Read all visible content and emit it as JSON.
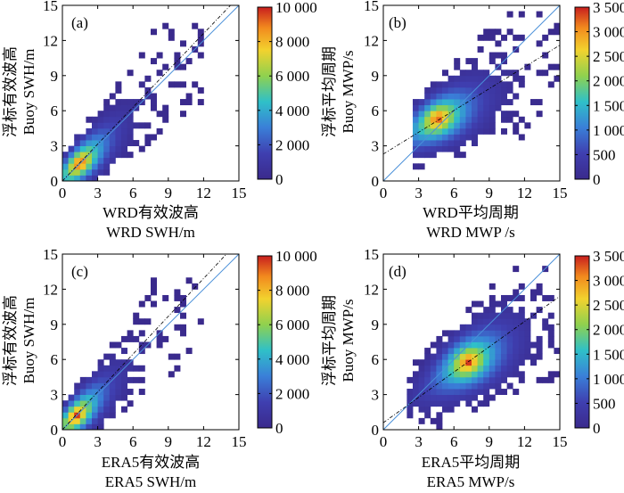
{
  "chart_data": [
    {
      "id": "a",
      "type": "heatmap",
      "panel_label": "(a)",
      "xlabel_cn": "WRD有效波高",
      "xlabel_en": "WRD SWH/m",
      "ylabel_cn": "浮标有效波高",
      "ylabel_en": "Buoy SWH/m",
      "xlim": [
        0,
        15
      ],
      "ylim": [
        0,
        15
      ],
      "xticks": [
        0,
        3,
        6,
        9,
        12,
        15
      ],
      "yticks": [
        0,
        3,
        6,
        9,
        12,
        15
      ],
      "colorbar": {
        "min": 0,
        "max": 10000,
        "ticks": [
          0,
          2000,
          4000,
          6000,
          8000,
          10000
        ],
        "tick_labels": [
          "0",
          "2 000",
          "4 000",
          "6 000",
          "8 000",
          "10 000"
        ]
      },
      "reference_line": {
        "type": "1:1",
        "color": "#4a90d9"
      },
      "fit_line": {
        "slope": 1.05,
        "intercept": 0.0,
        "style": "dash-dot",
        "color": "#000000"
      },
      "density_model": {
        "peak_x": 1.5,
        "peak_y": 1.5,
        "peak_count": 10000,
        "spread_x_max": 12,
        "spread_y_max": 13.5
      }
    },
    {
      "id": "b",
      "type": "heatmap",
      "panel_label": "(b)",
      "xlabel_cn": "WRD平均周期",
      "xlabel_en": "WRD MWP /s",
      "ylabel_cn": "浮标平均周期",
      "ylabel_en": "Buoy MWP/s",
      "xlim": [
        0,
        15
      ],
      "ylim": [
        0,
        15
      ],
      "xticks": [
        0,
        3,
        6,
        9,
        12,
        15
      ],
      "yticks": [
        0,
        3,
        6,
        9,
        12,
        15
      ],
      "colorbar": {
        "min": 0,
        "max": 3500,
        "ticks": [
          0,
          500,
          1000,
          1500,
          2000,
          2500,
          3000,
          3500
        ],
        "tick_labels": [
          "0",
          "500",
          "1 000",
          "1 500",
          "2 000",
          "2 500",
          "3 000",
          "3 500"
        ]
      },
      "reference_line": {
        "type": "1:1",
        "color": "#4a90d9"
      },
      "fit_line": {
        "slope": 0.62,
        "intercept": 2.3,
        "style": "dash-dot",
        "color": "#000000"
      },
      "density_model": {
        "peak_x": 4.6,
        "peak_y": 5.4,
        "peak_count": 3500,
        "spread_x_max": 15,
        "spread_y_max": 14.5
      }
    },
    {
      "id": "c",
      "type": "heatmap",
      "panel_label": "(c)",
      "xlabel_cn": "ERA5有效波高",
      "xlabel_en": "ERA5 SWH/m",
      "ylabel_cn": "浮标有效波高",
      "ylabel_en": "Buoy SWH/m",
      "xlim": [
        0,
        15
      ],
      "ylim": [
        0,
        15
      ],
      "xticks": [
        0,
        3,
        6,
        9,
        12,
        15
      ],
      "yticks": [
        0,
        3,
        6,
        9,
        12,
        15
      ],
      "colorbar": {
        "min": 0,
        "max": 10000,
        "ticks": [
          0,
          2000,
          4000,
          6000,
          8000,
          10000
        ],
        "tick_labels": [
          "0",
          "2 000",
          "4 000",
          "6 000",
          "8 000",
          "10 000"
        ]
      },
      "reference_line": {
        "type": "1:1",
        "color": "#4a90d9"
      },
      "fit_line": {
        "slope": 1.08,
        "intercept": -0.05,
        "style": "dash-dot",
        "color": "#000000"
      },
      "density_model": {
        "peak_x": 1.2,
        "peak_y": 1.2,
        "peak_count": 10000,
        "spread_x_max": 12,
        "spread_y_max": 13
      }
    },
    {
      "id": "d",
      "type": "heatmap",
      "panel_label": "(d)",
      "xlabel_cn": "ERA5平均周期",
      "xlabel_en": "ERA5 MWP/s",
      "ylabel_cn": "浮标平均周期",
      "ylabel_en": "Buoy MWP/s",
      "xlim": [
        0,
        15
      ],
      "ylim": [
        0,
        15
      ],
      "xticks": [
        0,
        3,
        6,
        9,
        12,
        15
      ],
      "yticks": [
        0,
        3,
        6,
        9,
        12,
        15
      ],
      "colorbar": {
        "min": 0,
        "max": 3500,
        "ticks": [
          0,
          500,
          1000,
          1500,
          2000,
          2500,
          3000,
          3500
        ],
        "tick_labels": [
          "0",
          "500",
          "1 000",
          "1 500",
          "2 000",
          "2 500",
          "3 000",
          "3 500"
        ]
      },
      "reference_line": {
        "type": "1:1",
        "color": "#4a90d9"
      },
      "fit_line": {
        "slope": 0.72,
        "intercept": 0.6,
        "style": "dash-dot",
        "color": "#000000"
      },
      "density_model": {
        "peak_x": 7.2,
        "peak_y": 5.8,
        "peak_count": 3500,
        "spread_x_max": 15,
        "spread_y_max": 14
      }
    }
  ]
}
